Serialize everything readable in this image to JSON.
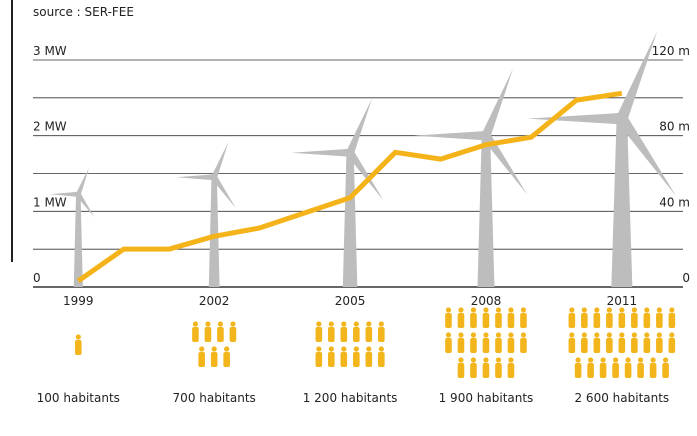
{
  "chart_data": {
    "type": "line",
    "source": "source : SER-FEE",
    "x": [
      1999,
      2000,
      2001,
      2002,
      2003,
      2004,
      2005,
      2006,
      2007,
      2008,
      2009,
      2010,
      2011
    ],
    "series": [
      {
        "color": "#f5b31a",
        "values": [
          0.08,
          0.5,
          0.5,
          0.67,
          0.78,
          0.98,
          1.18,
          1.78,
          1.69,
          1.88,
          1.98,
          2.47,
          2.56
        ]
      }
    ],
    "xlim": [
      1998,
      2012.35
    ],
    "xticks": [
      1999,
      2002,
      2005,
      2008,
      2011
    ],
    "ylim": [
      0,
      3
    ],
    "yticks": [
      0,
      {
        "value": 1,
        "label": "1 MW"
      },
      {
        "value": 2,
        "label": "2 MW"
      },
      {
        "value": 3,
        "label": "3 MW"
      }
    ],
    "minor_yticks": [
      0.5,
      1.5,
      2.5
    ],
    "y2lim": [
      0,
      120
    ],
    "y2ticks": [
      0,
      {
        "value": 40,
        "label": "40 m"
      },
      {
        "value": 80,
        "label": "80 m"
      },
      {
        "value": 120,
        "label": "120 m"
      }
    ],
    "grid": true,
    "turbines": {
      "color": "#bdbdbd",
      "hub_height": [
        49,
        58,
        71,
        80,
        89
      ],
      "rotor_radius": [
        15,
        20,
        31,
        38,
        50
      ]
    },
    "people": {
      "color": "#f2b51c",
      "values": [
        100,
        700,
        1200,
        1900,
        2600
      ],
      "value_labels": [
        "100 habitants",
        "700 habitants",
        "1 200 habitants",
        "1 900 habitants",
        "2 600 habitants"
      ]
    }
  }
}
